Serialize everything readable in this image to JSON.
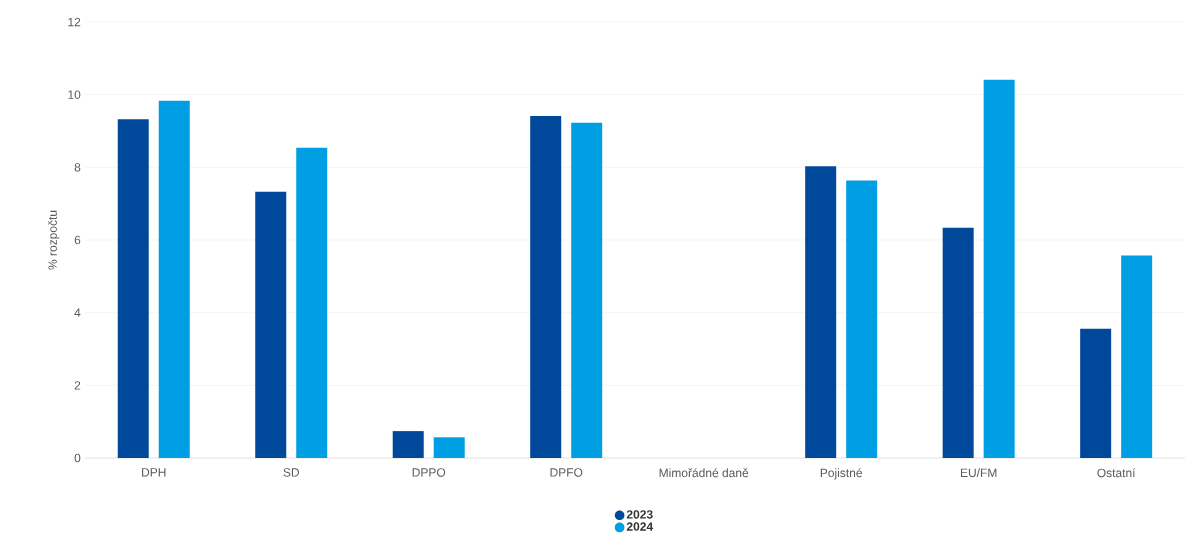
{
  "chart_data": {
    "type": "bar",
    "ylabel": "% rozpočtu",
    "categories": [
      "DPH",
      "SD",
      "DPPO",
      "DPFO",
      "Mimořádné daně",
      "Pojistné",
      "EU/FM",
      "Ostatní"
    ],
    "series": [
      {
        "name": "2023",
        "color": "#00489a",
        "values": [
          9.32,
          7.33,
          0.74,
          9.41,
          null,
          8.03,
          6.34,
          3.56
        ]
      },
      {
        "name": "2024",
        "color": "#009ee3",
        "values": [
          9.83,
          8.54,
          0.57,
          9.23,
          null,
          7.64,
          10.41,
          5.57
        ]
      }
    ],
    "ylim": [
      0,
      12
    ],
    "yticks": [
      0,
      2,
      4,
      6,
      8,
      10,
      12
    ],
    "grid": "y",
    "legend": "bottom"
  }
}
